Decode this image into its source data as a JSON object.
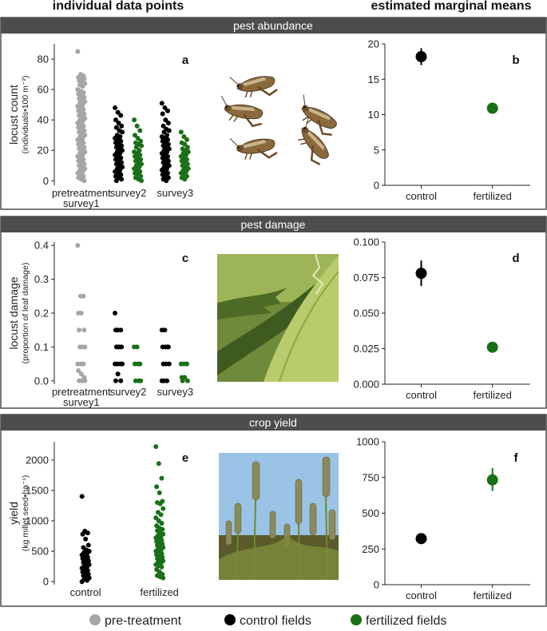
{
  "header": {
    "left": "individual data points",
    "right": "estimated marginal means"
  },
  "colors": {
    "pre": "#a6a6a6",
    "control": "#000000",
    "fertilized": "#1a7017",
    "banner": "#4d4d4d"
  },
  "sections": [
    {
      "banner": "pest abundance"
    },
    {
      "banner": "pest damage"
    },
    {
      "banner": "crop yield"
    }
  ],
  "photos": [
    "grasshopper-icon",
    "damaged-leaf-icon",
    "millet-icon"
  ],
  "legend": {
    "pre": "pre-treatment",
    "control": "control fields",
    "fertilized": "fertilized fields"
  },
  "chart_data": [
    {
      "id": "a",
      "type": "scatter",
      "panel_label": "a",
      "ylabel": "locust count",
      "ylabel_sub": "(individuals•100 m⁻²)",
      "ylim": [
        -3,
        90
      ],
      "yticks": [
        0,
        20,
        40,
        60,
        80
      ],
      "groups": [
        {
          "label": [
            "pretreatment",
            "survey1"
          ],
          "series": [
            {
              "treatment": "pre",
              "values": [
                85,
                70,
                69,
                68,
                68,
                67,
                66,
                65,
                64,
                63,
                62,
                60,
                59,
                58,
                57,
                56,
                55,
                54,
                53,
                52,
                51,
                50,
                49,
                48,
                47,
                46,
                45,
                44,
                43,
                42,
                41,
                40,
                39,
                38,
                37,
                36,
                35,
                34,
                33,
                32,
                31,
                30,
                29,
                28,
                27,
                26,
                25,
                24,
                23,
                22,
                21,
                20,
                19,
                18,
                17,
                16,
                15,
                14,
                13,
                12,
                11,
                10,
                9,
                8,
                7,
                6,
                5,
                4,
                3,
                2,
                1,
                0
              ]
            }
          ]
        },
        {
          "label": [
            "survey2"
          ],
          "series": [
            {
              "treatment": "control",
              "values": [
                48,
                45,
                43,
                40,
                38,
                36,
                35,
                33,
                32,
                30,
                29,
                28,
                27,
                26,
                25,
                24,
                23,
                22,
                21,
                20,
                19,
                18,
                17,
                16,
                15,
                14,
                13,
                12,
                11,
                10,
                9,
                8,
                7,
                6,
                5,
                4,
                3,
                2,
                1,
                0
              ]
            },
            {
              "treatment": "fertilized",
              "values": [
                40,
                36,
                33,
                30,
                28,
                26,
                25,
                24,
                23,
                22,
                20,
                19,
                18,
                17,
                16,
                15,
                14,
                13,
                12,
                11,
                10,
                9,
                8,
                7,
                6,
                5,
                4,
                3,
                2,
                1,
                0
              ]
            }
          ]
        },
        {
          "label": [
            "survey3"
          ],
          "series": [
            {
              "treatment": "control",
              "values": [
                51,
                48,
                46,
                44,
                40,
                38,
                36,
                34,
                33,
                32,
                30,
                29,
                28,
                27,
                26,
                25,
                24,
                23,
                22,
                21,
                20,
                19,
                18,
                17,
                16,
                15,
                14,
                13,
                12,
                11,
                10,
                9,
                8,
                7,
                6,
                5,
                4,
                3,
                2,
                1,
                0
              ]
            },
            {
              "treatment": "fertilized",
              "values": [
                32,
                29,
                27,
                25,
                24,
                22,
                21,
                20,
                19,
                18,
                17,
                16,
                15,
                14,
                13,
                12,
                11,
                10,
                9,
                8,
                7,
                6,
                5,
                4,
                3,
                2,
                1
              ]
            }
          ]
        }
      ]
    },
    {
      "id": "b",
      "type": "pointrange",
      "panel_label": "b",
      "ylim": [
        0,
        20
      ],
      "yticks": [
        0,
        5,
        10,
        15,
        20
      ],
      "categories": [
        "control",
        "fertilized"
      ],
      "points": [
        {
          "treatment": "control",
          "mean": 18.2,
          "lower": 17.0,
          "upper": 19.4
        },
        {
          "treatment": "fertilized",
          "mean": 10.9,
          "lower": 10.4,
          "upper": 11.4
        }
      ]
    },
    {
      "id": "c",
      "type": "scatter",
      "panel_label": "c",
      "ylabel": "locust damage",
      "ylabel_sub": "(proportion of leaf damage)",
      "ylim": [
        -0.01,
        0.41
      ],
      "yticks": [
        0.0,
        0.1,
        0.2,
        0.3,
        0.4
      ],
      "groups": [
        {
          "label": [
            "pretreatment",
            "survey1"
          ],
          "series": [
            {
              "treatment": "pre",
              "values": [
                0.4,
                0.25,
                0.25,
                0.2,
                0.2,
                0.15,
                0.15,
                0.1,
                0.1,
                0.1,
                0.05,
                0.05,
                0.05,
                0.05,
                0.03,
                0.02,
                0.01,
                0.0,
                0.0,
                0.0
              ]
            }
          ]
        },
        {
          "label": [
            "survey2"
          ],
          "series": [
            {
              "treatment": "control",
              "values": [
                0.2,
                0.15,
                0.15,
                0.15,
                0.1,
                0.1,
                0.1,
                0.1,
                0.05,
                0.05,
                0.05,
                0.05,
                0.02,
                0.0,
                0.0
              ]
            },
            {
              "treatment": "fertilized",
              "values": [
                0.1,
                0.1,
                0.05,
                0.05,
                0.05,
                0.0,
                0.0,
                0.0
              ]
            }
          ]
        },
        {
          "label": [
            "survey3"
          ],
          "series": [
            {
              "treatment": "control",
              "values": [
                0.15,
                0.15,
                0.1,
                0.1,
                0.1,
                0.1,
                0.05,
                0.05,
                0.05,
                0.0,
                0.0,
                0.0
              ]
            },
            {
              "treatment": "fertilized",
              "values": [
                0.05,
                0.05,
                0.05,
                0.01,
                0.01,
                0.0,
                0.0
              ]
            }
          ]
        }
      ]
    },
    {
      "id": "d",
      "type": "pointrange",
      "panel_label": "d",
      "ylim": [
        0,
        0.1
      ],
      "yticks": [
        0.0,
        0.025,
        0.05,
        0.075,
        0.1
      ],
      "ytick_labels": [
        "0.000",
        "0.025",
        "0.050",
        "0.075",
        "0.100"
      ],
      "categories": [
        "control",
        "fertilized"
      ],
      "points": [
        {
          "treatment": "control",
          "mean": 0.078,
          "lower": 0.069,
          "upper": 0.087
        },
        {
          "treatment": "fertilized",
          "mean": 0.026,
          "lower": 0.024,
          "upper": 0.029
        }
      ]
    },
    {
      "id": "e",
      "type": "scatter",
      "panel_label": "e",
      "ylabel": "yield",
      "ylabel_sub": "(kg millet seed•ha⁻¹)",
      "ylim": [
        -50,
        2300
      ],
      "yticks": [
        0,
        500,
        1000,
        1500,
        2000
      ],
      "groups": [
        {
          "label": [
            "control"
          ],
          "series": [
            {
              "treatment": "control",
              "values": [
                1400,
                830,
                800,
                780,
                700,
                600,
                560,
                520,
                500,
                480,
                460,
                440,
                420,
                400,
                380,
                360,
                340,
                320,
                300,
                280,
                260,
                240,
                220,
                200,
                180,
                160,
                140,
                120,
                100,
                80,
                60,
                40,
                20,
                0
              ]
            }
          ]
        },
        {
          "label": [
            "fertilized"
          ],
          "series": [
            {
              "treatment": "fertilized",
              "values": [
                2220,
                1940,
                1700,
                1560,
                1460,
                1320,
                1300,
                1280,
                1200,
                1140,
                1100,
                1050,
                1000,
                960,
                920,
                880,
                860,
                840,
                800,
                780,
                760,
                740,
                720,
                700,
                680,
                660,
                640,
                620,
                600,
                580,
                560,
                540,
                520,
                500,
                480,
                460,
                440,
                420,
                400,
                380,
                360,
                340,
                320,
                300,
                280,
                260,
                240,
                200,
                160,
                120,
                100,
                80,
                60
              ]
            }
          ]
        }
      ]
    },
    {
      "id": "f",
      "type": "pointrange",
      "panel_label": "f",
      "ylim": [
        0,
        1000
      ],
      "yticks": [
        0,
        250,
        500,
        750,
        1000
      ],
      "categories": [
        "control",
        "fertilized"
      ],
      "points": [
        {
          "treatment": "control",
          "mean": 322,
          "lower": 300,
          "upper": 345
        },
        {
          "treatment": "fertilized",
          "mean": 733,
          "lower": 655,
          "upper": 815
        }
      ]
    }
  ]
}
